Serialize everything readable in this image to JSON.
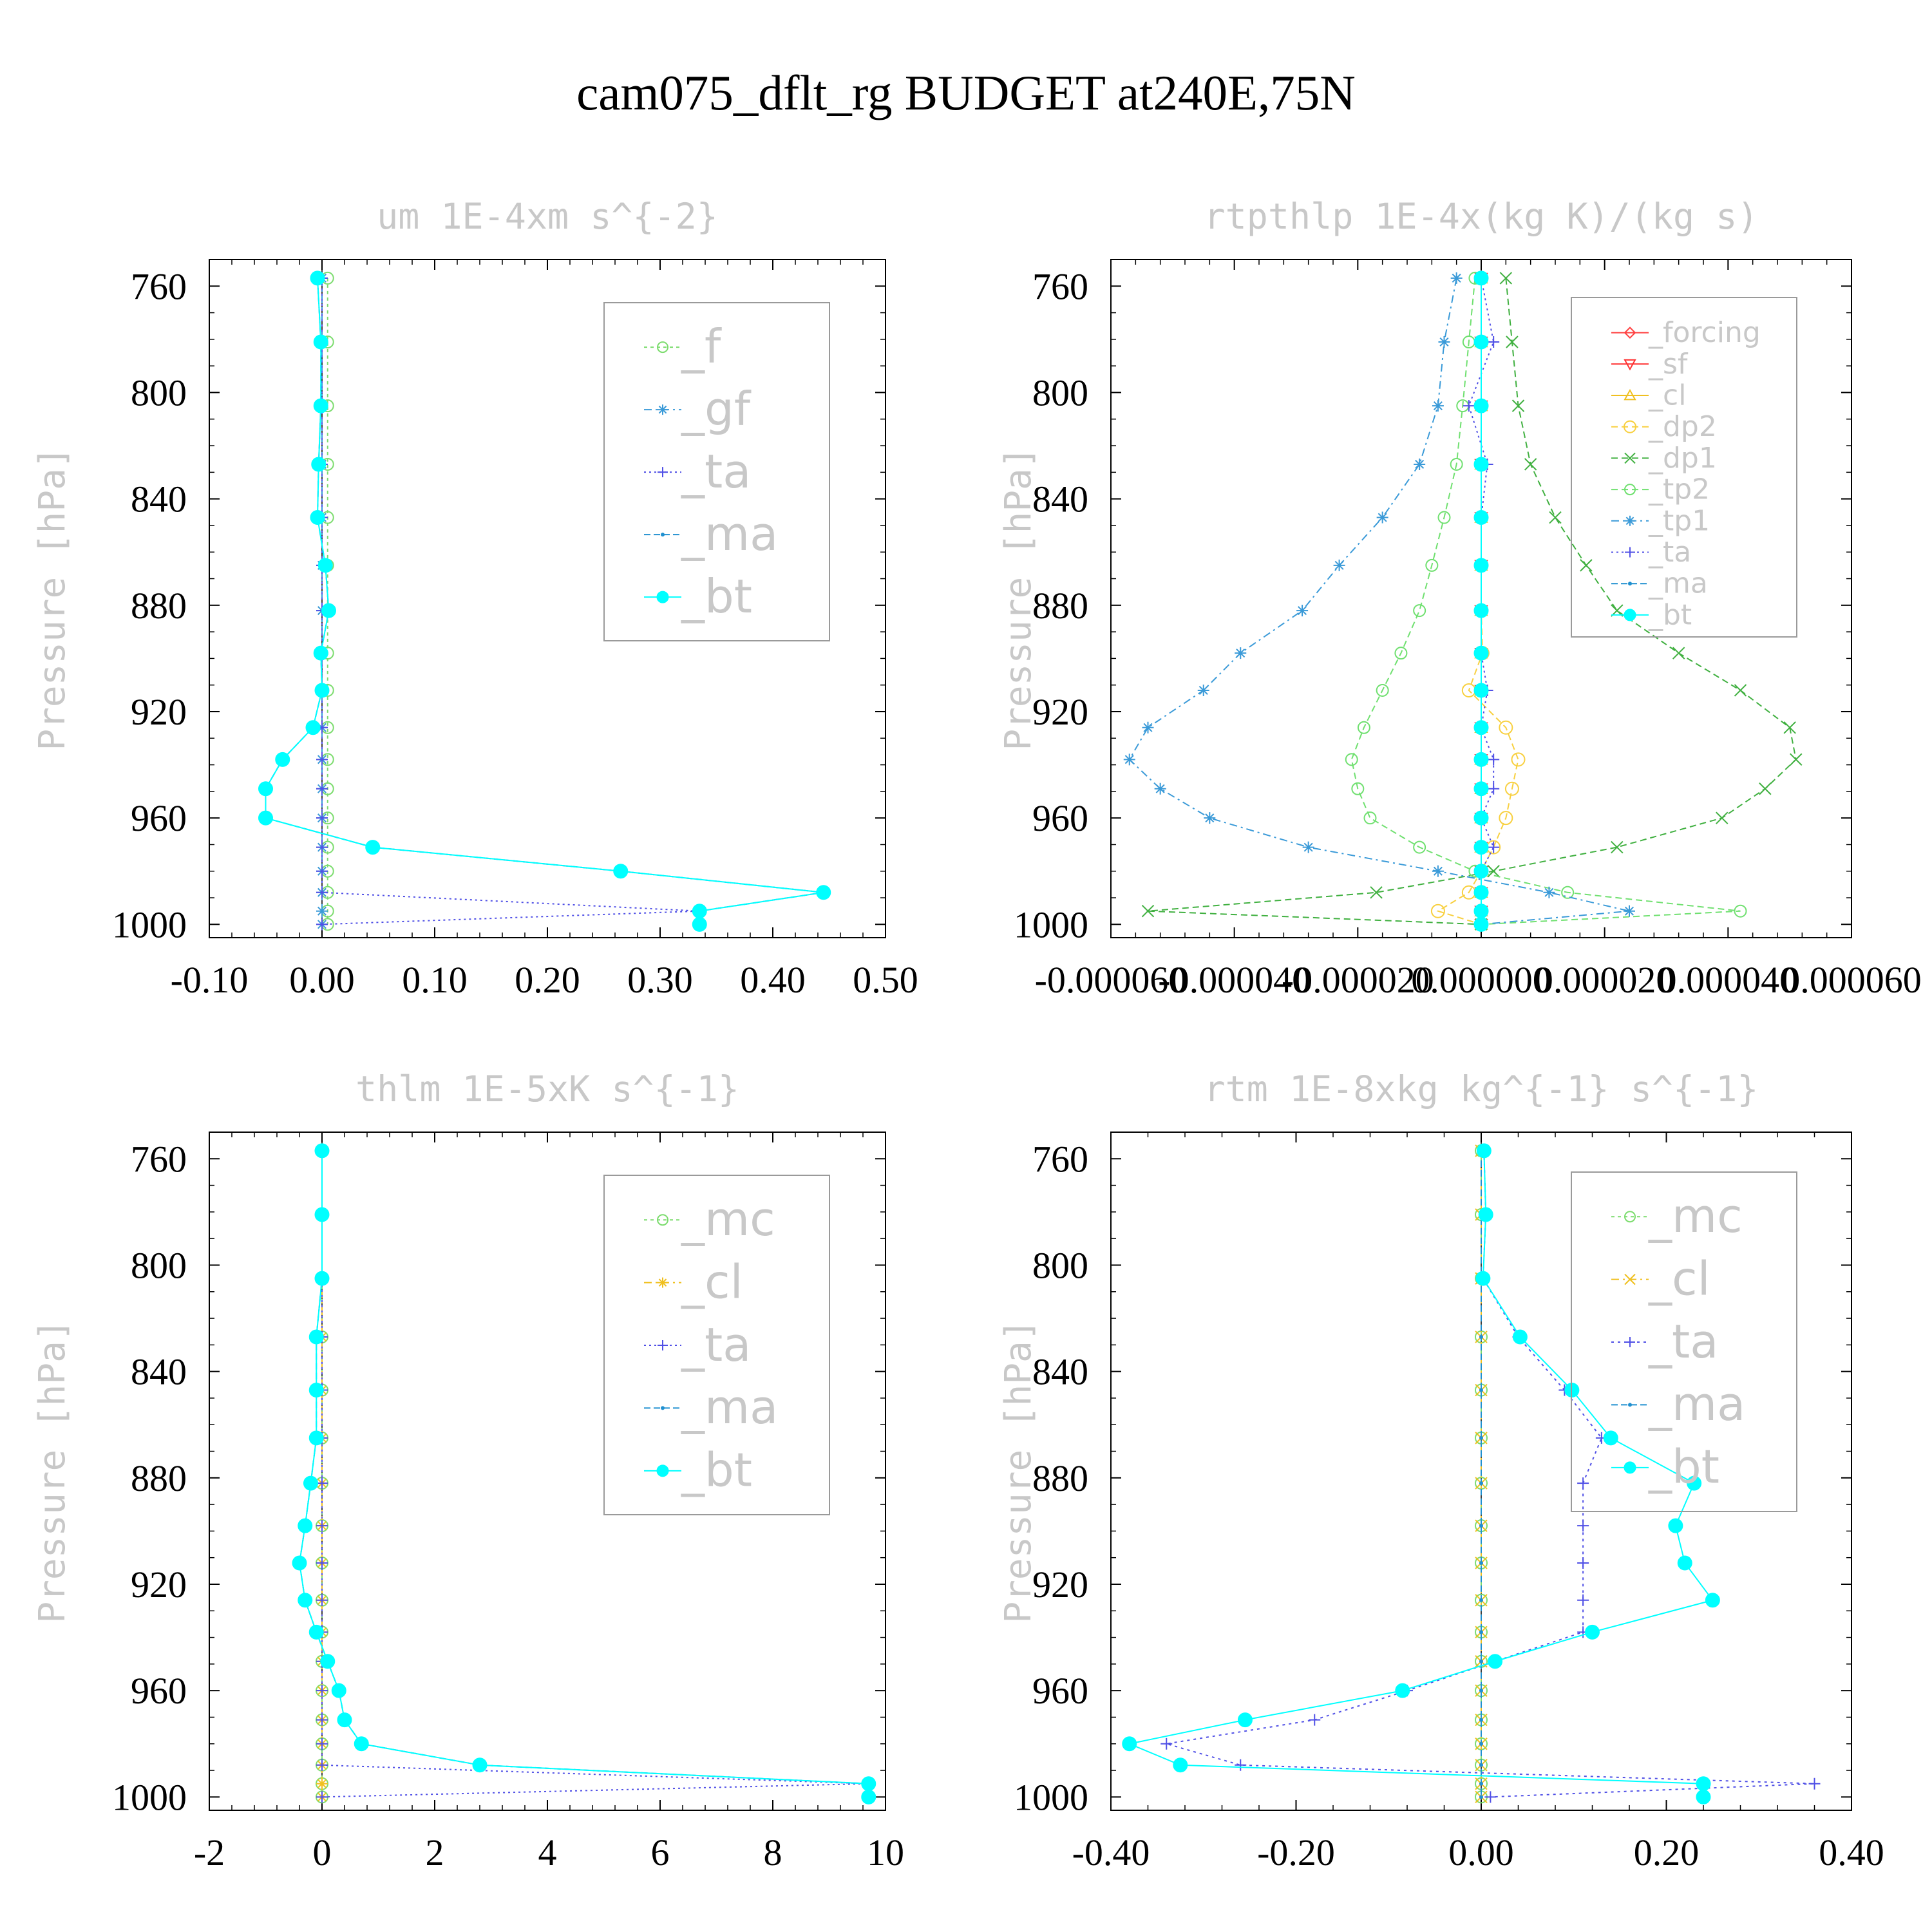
{
  "title": "cam075_dflt_rg  BUDGET at240E,75N",
  "colors": {
    "_f": "#7cdc6e",
    "_gf": "#3a9ad8",
    "_ta": "#5050e6",
    "_ma": "#2090d0",
    "_bt": "#00ffff",
    "_forcing": "#ff4040",
    "_sf": "#ff3030",
    "_cl": "#f0c020",
    "_dp2": "#f8d040",
    "_dp1": "#40b040",
    "_tp2": "#70e070",
    "_tp1": "#3a9ad8",
    "_mc": "#7cdc6e"
  },
  "chart_data": [
    {
      "type": "line",
      "title": "um  1E-4xm s^{-2}",
      "ylabel": "Pressure [hPa]",
      "xlim": [
        -0.1,
        0.5
      ],
      "ylim": [
        1005,
        750
      ],
      "xticks": [
        -0.1,
        0.0,
        0.1,
        0.2,
        0.3,
        0.4,
        0.5
      ],
      "xtick_labels": [
        "-0.10",
        "0.00",
        "0.10",
        "0.20",
        "0.30",
        "0.40",
        "0.50"
      ],
      "yticks": [
        760,
        800,
        840,
        880,
        920,
        960,
        1000
      ],
      "ytick_labels": [
        "760",
        "800",
        "840",
        "880",
        "920",
        "960",
        "1000"
      ],
      "legend_position": "top-right",
      "legend_font": 72,
      "levels": [
        757,
        781,
        805,
        827,
        847,
        865,
        882,
        898,
        912,
        926,
        938,
        949,
        960,
        971,
        980,
        988,
        995,
        1000
      ],
      "series": [
        {
          "name": "_f",
          "values": [
            0.005,
            0.005,
            0.005,
            0.005,
            0.005,
            0.005,
            0.005,
            0.005,
            0.005,
            0.005,
            0.005,
            0.005,
            0.005,
            0.005,
            0.005,
            0.005,
            0.005,
            0.005
          ],
          "marker": "circle-open",
          "dash": "5,5"
        },
        {
          "name": "_gf",
          "values": [
            0.0,
            0.0,
            0.0,
            0.0,
            0.0,
            0.0,
            0.0,
            0.0,
            0.0,
            0.0,
            0.0,
            0.0,
            0.0,
            0.0,
            0.0,
            0.0,
            0.0,
            0.0
          ],
          "marker": "star",
          "dash": "12,6,3,6"
        },
        {
          "name": "_ta",
          "values": [
            0.0,
            0.0,
            0.0,
            0.0,
            0.0,
            0.0,
            0.0,
            0.0,
            0.0,
            0.0,
            0.0,
            0.0,
            0.0,
            0.0,
            0.0,
            0.0,
            0.335,
            0.0
          ],
          "marker": "plus",
          "dash": "3,5"
        },
        {
          "name": "_ma",
          "values": [
            -0.004,
            -0.001,
            -0.001,
            -0.003,
            -0.004,
            0.003,
            0.006,
            -0.001,
            0.0,
            -0.008,
            -0.035,
            -0.05,
            -0.05,
            0.045,
            0.265,
            0.445,
            0.335,
            0.335
          ],
          "marker": "dot",
          "dash": "10,5"
        },
        {
          "name": "_bt",
          "values": [
            -0.004,
            -0.001,
            -0.001,
            -0.003,
            -0.004,
            0.003,
            0.006,
            -0.001,
            0.0,
            -0.008,
            -0.035,
            -0.05,
            -0.05,
            0.045,
            0.265,
            0.445,
            0.335,
            0.335
          ],
          "marker": "filled",
          "dash": ""
        }
      ]
    },
    {
      "type": "line",
      "title": "rtpthlp  1E-4x(kg K)/(kg s)",
      "ylabel": "Pressure [hPa]",
      "xlim": [
        -6e-05,
        6e-05
      ],
      "ylim": [
        1005,
        750
      ],
      "xticks": [
        -6e-05,
        -4e-05,
        -2e-05,
        0.0,
        2e-05,
        4e-05,
        6e-05
      ],
      "xtick_labels": [
        "-0.000060",
        "-0.000040",
        "-0.000020",
        "0.000000",
        "0.000020",
        "0.000040",
        "0.000060"
      ],
      "yticks": [
        760,
        800,
        840,
        880,
        920,
        960,
        1000
      ],
      "ytick_labels": [
        "760",
        "800",
        "840",
        "880",
        "920",
        "960",
        "1000"
      ],
      "legend_position": "top-right",
      "legend_font": 44,
      "levels": [
        757,
        781,
        805,
        827,
        847,
        865,
        882,
        898,
        912,
        926,
        938,
        949,
        960,
        971,
        980,
        988,
        995,
        1000
      ],
      "series": [
        {
          "name": "_forcing",
          "values": [
            0,
            0,
            0,
            0,
            0,
            0,
            0,
            0,
            0,
            0,
            0,
            0,
            0,
            0,
            0,
            0,
            0,
            0
          ],
          "marker": "diamond-open",
          "dash": ""
        },
        {
          "name": "_sf",
          "values": [
            0,
            0,
            0,
            0,
            0,
            0,
            0,
            0,
            0,
            0,
            0,
            0,
            0,
            0,
            0,
            0,
            0,
            0
          ],
          "marker": "tri-down",
          "dash": ""
        },
        {
          "name": "_cl",
          "values": [
            0,
            0,
            0,
            0,
            0,
            0,
            0,
            0,
            0,
            0,
            0,
            0,
            0,
            0,
            0,
            0,
            0,
            0
          ],
          "marker": "tri-up",
          "dash": ""
        },
        {
          "name": "_dp2",
          "values": [
            0,
            0,
            0,
            0,
            0,
            0,
            0,
            2e-07,
            -2e-06,
            4e-06,
            6e-06,
            5e-06,
            4e-06,
            2e-06,
            0,
            -2e-06,
            -7e-06,
            0
          ],
          "marker": "hex-open",
          "dash": "10,6"
        },
        {
          "name": "_dp1",
          "values": [
            4e-06,
            5e-06,
            6e-06,
            8e-06,
            1.2e-05,
            1.7e-05,
            2.2e-05,
            3.2e-05,
            4.2e-05,
            5e-05,
            5.1e-05,
            4.6e-05,
            3.9e-05,
            2.2e-05,
            2e-06,
            -1.7e-05,
            -5.4e-05,
            0
          ],
          "marker": "x",
          "dash": "10,6"
        },
        {
          "name": "_tp2",
          "values": [
            -1e-06,
            -2e-06,
            -3e-06,
            -4e-06,
            -6e-06,
            -8e-06,
            -1e-05,
            -1.3e-05,
            -1.6e-05,
            -1.9e-05,
            -2.1e-05,
            -2e-05,
            -1.8e-05,
            -1e-05,
            -1e-06,
            1.4e-05,
            4.2e-05,
            0
          ],
          "marker": "circle-open",
          "dash": "10,6"
        },
        {
          "name": "_tp1",
          "values": [
            -4e-06,
            -6e-06,
            -7e-06,
            -1e-05,
            -1.6e-05,
            -2.3e-05,
            -2.9e-05,
            -3.9e-05,
            -4.5e-05,
            -5.4e-05,
            -5.7e-05,
            -5.2e-05,
            -4.4e-05,
            -2.8e-05,
            -7e-06,
            1.1e-05,
            2.4e-05,
            0
          ],
          "marker": "star",
          "dash": "12,6,3,6"
        },
        {
          "name": "_ta",
          "values": [
            0,
            2e-06,
            -2e-06,
            1e-06,
            0,
            0,
            0,
            0,
            1e-06,
            0,
            2e-06,
            2e-06,
            0,
            2e-06,
            0,
            0,
            0,
            0
          ],
          "marker": "plus",
          "dash": "3,5"
        },
        {
          "name": "_ma",
          "values": [
            0,
            0,
            0,
            0,
            0,
            0,
            0,
            0,
            0,
            0,
            0,
            0,
            0,
            0,
            0,
            0,
            0,
            0
          ],
          "marker": "dot",
          "dash": "10,5"
        },
        {
          "name": "_bt",
          "values": [
            0,
            0,
            0,
            0,
            0,
            0,
            0,
            0,
            0,
            0,
            0,
            0,
            0,
            0,
            0,
            0,
            0,
            0
          ],
          "marker": "filled",
          "dash": ""
        }
      ]
    },
    {
      "type": "line",
      "title": "thlm  1E-5xK s^{-1}",
      "ylabel": "Pressure [hPa]",
      "xlim": [
        -2,
        10
      ],
      "ylim": [
        1005,
        750
      ],
      "xticks": [
        -2,
        0,
        2,
        4,
        6,
        8,
        10
      ],
      "xtick_labels": [
        "-2",
        "0",
        "2",
        "4",
        "6",
        "8",
        "10"
      ],
      "yticks": [
        760,
        800,
        840,
        880,
        920,
        960,
        1000
      ],
      "ytick_labels": [
        "760",
        "800",
        "840",
        "880",
        "920",
        "960",
        "1000"
      ],
      "legend_position": "top-right",
      "legend_font": 72,
      "levels": [
        757,
        781,
        805,
        827,
        847,
        865,
        882,
        898,
        912,
        926,
        938,
        949,
        960,
        971,
        980,
        988,
        995,
        1000
      ],
      "series": [
        {
          "name": "_mc",
          "values": [
            0,
            0,
            0,
            0,
            0,
            0,
            0,
            0,
            0,
            0,
            0,
            0,
            0,
            0,
            0,
            0,
            0,
            0
          ],
          "marker": "circle-open",
          "dash": "5,5"
        },
        {
          "name": "_cl",
          "values": [
            0,
            0,
            0,
            0,
            0,
            0,
            0,
            0,
            0,
            0,
            0,
            0,
            0,
            0,
            0,
            0,
            0,
            0
          ],
          "marker": "star",
          "dash": "12,6,3,6"
        },
        {
          "name": "_ta",
          "values": [
            0,
            0,
            0,
            0,
            0,
            0,
            0,
            0,
            0,
            0,
            0,
            0,
            0,
            0,
            0,
            0,
            9.7,
            0
          ],
          "marker": "plus",
          "dash": "3,5"
        },
        {
          "name": "_ma",
          "values": [
            0.0,
            0.0,
            0.0,
            -0.1,
            -0.1,
            -0.1,
            -0.2,
            -0.3,
            -0.4,
            -0.3,
            -0.1,
            0.1,
            0.3,
            0.4,
            0.7,
            2.8,
            9.7,
            9.7
          ],
          "marker": "dot",
          "dash": "10,5"
        },
        {
          "name": "_bt",
          "values": [
            0.0,
            0.0,
            0.0,
            -0.1,
            -0.1,
            -0.1,
            -0.2,
            -0.3,
            -0.4,
            -0.3,
            -0.1,
            0.1,
            0.3,
            0.4,
            0.7,
            2.8,
            9.7,
            9.7
          ],
          "marker": "filled",
          "dash": ""
        }
      ]
    },
    {
      "type": "line",
      "title": "rtm  1E-8xkg kg^{-1} s^{-1}",
      "ylabel": "Pressure [hPa]",
      "xlim": [
        -0.4,
        0.4
      ],
      "ylim": [
        1005,
        750
      ],
      "xticks": [
        -0.4,
        -0.2,
        0.0,
        0.2,
        0.4
      ],
      "xtick_labels": [
        "-0.40",
        "-0.20",
        "0.00",
        "0.20",
        "0.40"
      ],
      "yticks": [
        760,
        800,
        840,
        880,
        920,
        960,
        1000
      ],
      "ytick_labels": [
        "760",
        "800",
        "840",
        "880",
        "920",
        "960",
        "1000"
      ],
      "legend_position": "top-right",
      "legend_font": 72,
      "levels": [
        757,
        781,
        805,
        827,
        847,
        865,
        882,
        898,
        912,
        926,
        938,
        949,
        960,
        971,
        980,
        988,
        995,
        1000
      ],
      "series": [
        {
          "name": "_mc",
          "values": [
            0,
            0,
            0,
            0,
            0,
            0,
            0,
            0,
            0,
            0,
            0,
            0,
            0,
            0,
            0,
            0,
            0,
            0
          ],
          "marker": "circle-open",
          "dash": "5,5"
        },
        {
          "name": "_cl",
          "values": [
            0,
            0,
            0,
            0,
            0,
            0,
            0,
            0,
            0,
            0,
            0,
            0,
            0,
            0,
            0,
            0,
            0,
            0
          ],
          "marker": "x",
          "dash": "12,6,3,6"
        },
        {
          "name": "_ta",
          "values": [
            0.003,
            0.005,
            0.002,
            0.04,
            0.09,
            0.13,
            0.11,
            0.11,
            0.11,
            0.11,
            0.11,
            0.015,
            -0.08,
            -0.18,
            -0.34,
            -0.26,
            0.36,
            0.01
          ],
          "marker": "plus",
          "dash": "4,6"
        },
        {
          "name": "_ma",
          "values": [
            0,
            0,
            0,
            0,
            0,
            0,
            0,
            0,
            0,
            0,
            0,
            0,
            0,
            0,
            0,
            0,
            0,
            0
          ],
          "marker": "dot",
          "dash": "10,5"
        },
        {
          "name": "_bt",
          "values": [
            0.003,
            0.005,
            0.002,
            0.042,
            0.098,
            0.14,
            0.23,
            0.21,
            0.22,
            0.25,
            0.12,
            0.015,
            -0.085,
            -0.255,
            -0.38,
            -0.325,
            0.24,
            0.24
          ],
          "marker": "filled",
          "dash": ""
        }
      ]
    }
  ]
}
